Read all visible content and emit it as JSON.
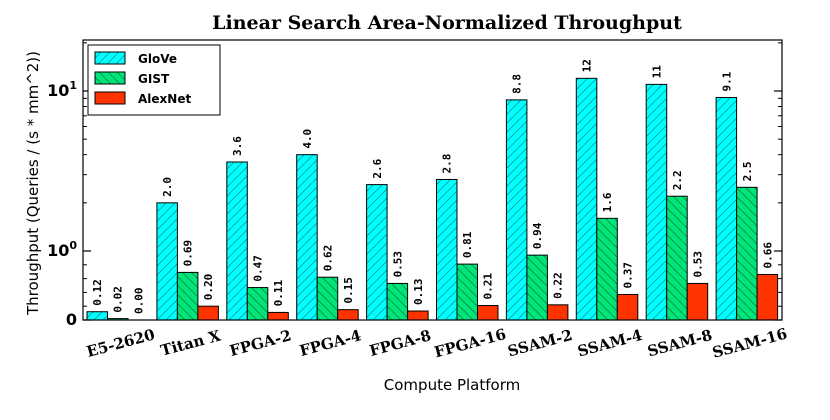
{
  "chart_data": {
    "type": "bar",
    "title": "Linear Search Area-Normalized Throughput",
    "xlabel": "Compute Platform",
    "ylabel": "Throughput (Queries / (s * mm^2))",
    "yscale": "symlog",
    "ylim": [
      0,
      20
    ],
    "yticks": [
      {
        "value": 0,
        "label": "0"
      },
      {
        "value": 1,
        "label": "10",
        "exp": "0"
      },
      {
        "value": 10,
        "label": "10",
        "exp": "1"
      }
    ],
    "categories": [
      "E5-2620",
      "Titan X",
      "FPGA-2",
      "FPGA-4",
      "FPGA-8",
      "FPGA-16",
      "SSAM-2",
      "SSAM-4",
      "SSAM-8",
      "SSAM-16"
    ],
    "series": [
      {
        "name": "GloVe",
        "color": "#00ffff",
        "hatch": "diagonal",
        "values": [
          0.12,
          2.0,
          3.6,
          4.0,
          2.6,
          2.8,
          8.8,
          12,
          11,
          9.1
        ],
        "labels": [
          "0.12",
          "2.0",
          "3.6",
          "4.0",
          "2.6",
          "2.8",
          "8.8",
          "12",
          "11",
          "9.1"
        ]
      },
      {
        "name": "GIST",
        "color": "#00e57a",
        "hatch": "backslash",
        "values": [
          0.02,
          0.69,
          0.47,
          0.62,
          0.53,
          0.81,
          0.94,
          1.6,
          2.2,
          2.5
        ],
        "labels": [
          "0.02",
          "0.69",
          "0.47",
          "0.62",
          "0.53",
          "0.81",
          "0.94",
          "1.6",
          "2.2",
          "2.5"
        ]
      },
      {
        "name": "AlexNet",
        "color": "#ff3300",
        "hatch": "none",
        "values": [
          0.0,
          0.2,
          0.11,
          0.15,
          0.13,
          0.21,
          0.22,
          0.37,
          0.53,
          0.66
        ],
        "labels": [
          "0.00",
          "0.20",
          "0.11",
          "0.15",
          "0.13",
          "0.21",
          "0.22",
          "0.37",
          "0.53",
          "0.66"
        ]
      }
    ],
    "grid": false,
    "legend_position": "top-left"
  }
}
